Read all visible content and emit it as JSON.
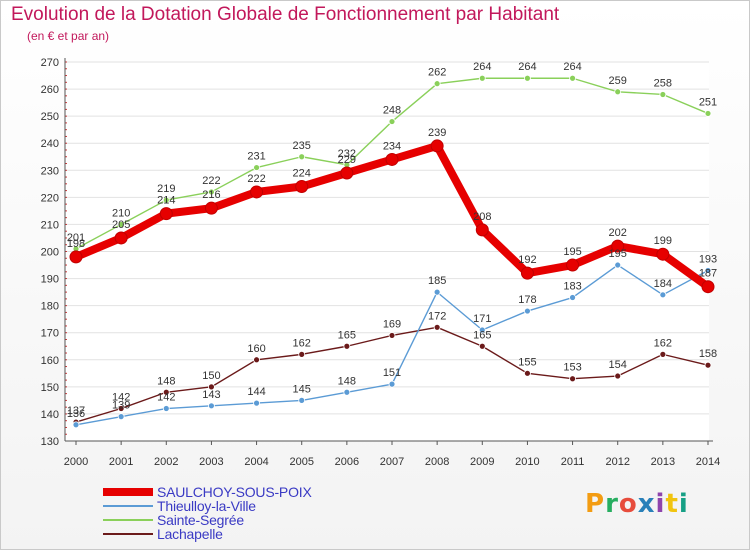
{
  "header": {
    "title": "Evolution de la Dotation Globale de Fonctionnement par Habitant",
    "subtitle": "(en € et par an)"
  },
  "logo": {
    "text": "Proxiti",
    "colors": [
      "#f39c12",
      "#27ae60",
      "#e74c3c",
      "#2980b9",
      "#8e44ad",
      "#f1c40f",
      "#16a085"
    ]
  },
  "chart_data": {
    "type": "line",
    "categories": [
      "2000",
      "2001",
      "2002",
      "2003",
      "2004",
      "2005",
      "2006",
      "2007",
      "2008",
      "2009",
      "2010",
      "2011",
      "2012",
      "2013",
      "2014"
    ],
    "ylim": [
      130,
      270
    ],
    "yticks": [
      130,
      140,
      150,
      160,
      170,
      180,
      190,
      200,
      210,
      220,
      230,
      240,
      250,
      260,
      270
    ],
    "grid": "horizontal",
    "legend_position": "bottom-left",
    "series": [
      {
        "name": "SAULCHOY-SOUS-POIX",
        "color": "#e60000",
        "width": 8,
        "values": [
          198,
          205,
          214,
          216,
          222,
          224,
          229,
          234,
          239,
          208,
          192,
          195,
          202,
          199,
          187
        ]
      },
      {
        "name": "Thieulloy-la-Ville",
        "color": "#5b9bd5",
        "width": 1.4,
        "values": [
          136,
          139,
          142,
          143,
          144,
          145,
          148,
          151,
          185,
          171,
          178,
          183,
          195,
          184,
          193
        ]
      },
      {
        "name": "Sainte-Segrée",
        "color": "#8ad05a",
        "width": 1.4,
        "values": [
          201,
          210,
          219,
          222,
          231,
          235,
          232,
          248,
          262,
          264,
          264,
          264,
          259,
          258,
          251
        ]
      },
      {
        "name": "Lachapelle",
        "color": "#6b1a1a",
        "width": 1.4,
        "values": [
          137,
          142,
          148,
          150,
          160,
          162,
          165,
          169,
          172,
          165,
          155,
          153,
          154,
          162,
          158
        ]
      }
    ]
  }
}
